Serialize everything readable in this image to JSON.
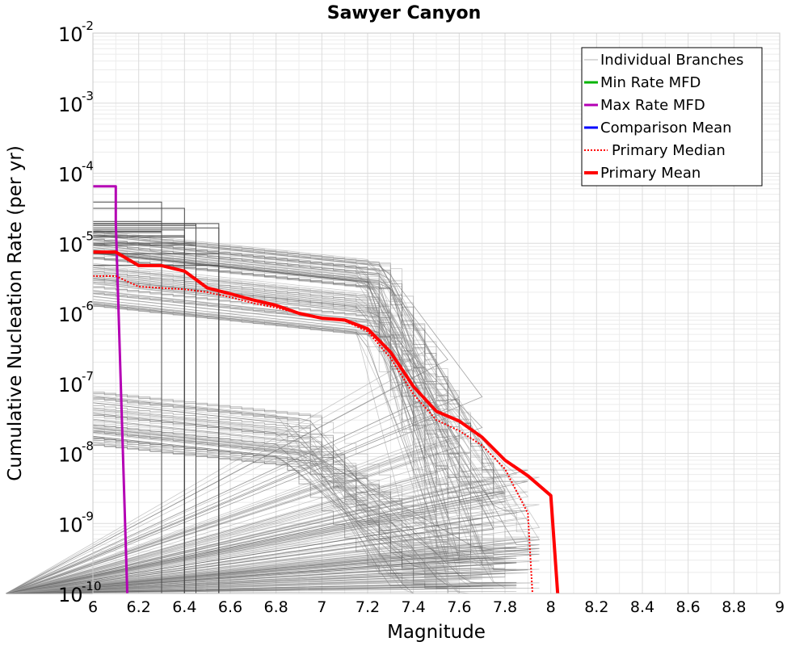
{
  "chart_data": {
    "type": "line",
    "title": "Sawyer Canyon",
    "xlabel": "Magnitude",
    "ylabel": "Cumulative Nucleation Rate (per yr)",
    "xlim": [
      6,
      9
    ],
    "ylim": [
      1e-10,
      0.01
    ],
    "yscale": "log",
    "grid": true,
    "legend_position": "top-right",
    "x_ticks": [
      "6",
      "6.2",
      "6.4",
      "6.6",
      "6.8",
      "7",
      "7.2",
      "7.4",
      "7.6",
      "7.8",
      "8",
      "8.2",
      "8.4",
      "8.6",
      "8.8",
      "9"
    ],
    "y_ticks": [
      {
        "base": "10",
        "exp": "-2",
        "value": 0.01
      },
      {
        "base": "10",
        "exp": "-3",
        "value": 0.001
      },
      {
        "base": "10",
        "exp": "-4",
        "value": 0.0001
      },
      {
        "base": "10",
        "exp": "-5",
        "value": 1e-05
      },
      {
        "base": "10",
        "exp": "-6",
        "value": 1e-06
      },
      {
        "base": "10",
        "exp": "-7",
        "value": 1e-07
      },
      {
        "base": "10",
        "exp": "-8",
        "value": 1e-08
      },
      {
        "base": "10",
        "exp": "-9",
        "value": 1e-09
      },
      {
        "base": "10",
        "exp": "-10",
        "value": 1e-10
      }
    ],
    "legend": [
      {
        "label": "Individual Branches",
        "color": "#b4b4b4",
        "style": "thin"
      },
      {
        "label": "Min Rate MFD",
        "color": "#00b400",
        "style": "solid"
      },
      {
        "label": "Max Rate MFD",
        "color": "#b400b4",
        "style": "solid"
      },
      {
        "label": "Comparison Mean",
        "color": "#0000ff",
        "style": "solid"
      },
      {
        "label": "Primary Median",
        "color": "#ff0000",
        "style": "dotted"
      },
      {
        "label": "Primary Mean",
        "color": "#ff0000",
        "style": "thick"
      }
    ],
    "series": [
      {
        "name": "Max Rate MFD",
        "color": "#b400b4",
        "x": [
          6.0,
          6.1,
          6.1,
          6.15
        ],
        "y": [
          6.5e-05,
          6.5e-05,
          2e-05,
          1e-10
        ]
      },
      {
        "name": "Primary Mean",
        "color": "#ff0000",
        "x": [
          6.0,
          6.1,
          6.2,
          6.3,
          6.4,
          6.5,
          6.6,
          6.7,
          6.8,
          6.9,
          7.0,
          7.1,
          7.2,
          7.3,
          7.4,
          7.5,
          7.6,
          7.7,
          7.8,
          7.9,
          8.0,
          8.0,
          8.03
        ],
        "y": [
          7.5e-06,
          7.5e-06,
          4.8e-06,
          4.8e-06,
          4e-06,
          2.3e-06,
          1.9e-06,
          1.55e-06,
          1.3e-06,
          1e-06,
          8.5e-07,
          8e-07,
          6e-07,
          2.8e-07,
          9e-08,
          4e-08,
          2.9e-08,
          1.7e-08,
          8e-09,
          4.8e-09,
          2.5e-09,
          2.5e-09,
          1e-10
        ]
      },
      {
        "name": "Primary Median",
        "color": "#ff0000",
        "x": [
          6.0,
          6.1,
          6.2,
          6.3,
          6.4,
          6.5,
          6.6,
          6.7,
          6.8,
          6.9,
          7.0,
          7.1,
          7.2,
          7.3,
          7.4,
          7.5,
          7.6,
          7.7,
          7.8,
          7.9,
          7.9,
          7.92
        ],
        "y": [
          3.4e-06,
          3.4e-06,
          2.4e-06,
          2.3e-06,
          2.2e-06,
          2e-06,
          1.7e-06,
          1.4e-06,
          1.2e-06,
          1e-06,
          8.5e-07,
          7.8e-07,
          5.5e-07,
          2.3e-07,
          7e-08,
          3e-08,
          2.1e-08,
          1.3e-08,
          6e-09,
          1.4e-09,
          1.4e-09,
          1e-10
        ]
      }
    ]
  }
}
